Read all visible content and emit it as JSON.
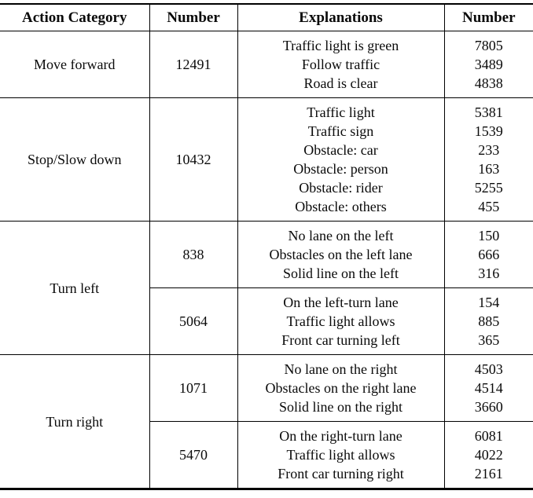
{
  "table": {
    "headers": [
      "Action Category",
      "Number",
      "Explanations",
      "Number"
    ],
    "sections": [
      {
        "category": "Move forward",
        "groups": [
          {
            "number": "12491",
            "explanations": [
              {
                "label": "Traffic light is green",
                "number": "7805"
              },
              {
                "label": "Follow traffic",
                "number": "3489"
              },
              {
                "label": "Road is clear",
                "number": "4838"
              }
            ]
          }
        ]
      },
      {
        "category": "Stop/Slow down",
        "groups": [
          {
            "number": "10432",
            "explanations": [
              {
                "label": "Traffic light",
                "number": "5381"
              },
              {
                "label": "Traffic sign",
                "number": "1539"
              },
              {
                "label": "Obstacle: car",
                "number": "233"
              },
              {
                "label": "Obstacle: person",
                "number": "163"
              },
              {
                "label": "Obstacle: rider",
                "number": "5255"
              },
              {
                "label": "Obstacle: others",
                "number": "455"
              }
            ]
          }
        ]
      },
      {
        "category": "Turn left",
        "groups": [
          {
            "number": "838",
            "explanations": [
              {
                "label": "No lane on the left",
                "number": "150"
              },
              {
                "label": "Obstacles on the left lane",
                "number": "666"
              },
              {
                "label": "Solid line on the left",
                "number": "316"
              }
            ]
          },
          {
            "number": "5064",
            "explanations": [
              {
                "label": "On the left-turn lane",
                "number": "154"
              },
              {
                "label": "Traffic light allows",
                "number": "885"
              },
              {
                "label": "Front car turning left",
                "number": "365"
              }
            ]
          }
        ]
      },
      {
        "category": "Turn right",
        "groups": [
          {
            "number": "1071",
            "explanations": [
              {
                "label": "No lane on the right",
                "number": "4503"
              },
              {
                "label": "Obstacles on the right lane",
                "number": "4514"
              },
              {
                "label": "Solid line on the right",
                "number": "3660"
              }
            ]
          },
          {
            "number": "5470",
            "explanations": [
              {
                "label": "On the right-turn lane",
                "number": "6081"
              },
              {
                "label": "Traffic light allows",
                "number": "4022"
              },
              {
                "label": "Front car turning right",
                "number": "2161"
              }
            ]
          }
        ]
      }
    ]
  }
}
